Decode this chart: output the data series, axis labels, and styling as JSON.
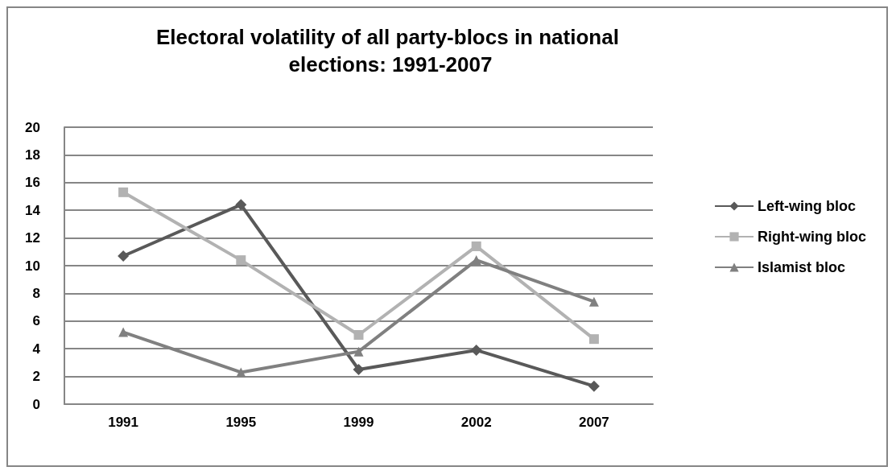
{
  "chart_data": {
    "type": "line",
    "title": "Electoral volatility of all party-blocs in national elections: 1991-2007",
    "categories": [
      "1991",
      "1995",
      "1999",
      "2002",
      "2007"
    ],
    "series": [
      {
        "name": "Left-wing bloc",
        "color": "#595959",
        "marker": "diamond",
        "values": [
          10.7,
          14.4,
          2.5,
          3.9,
          1.3
        ]
      },
      {
        "name": "Right-wing bloc",
        "color": "#b2b2b2",
        "marker": "square",
        "values": [
          15.3,
          10.4,
          5.0,
          11.4,
          4.7
        ]
      },
      {
        "name": "Islamist bloc",
        "color": "#808080",
        "marker": "triangle",
        "values": [
          5.2,
          2.3,
          3.8,
          10.4,
          7.4
        ]
      }
    ],
    "ylim": [
      0,
      20
    ],
    "yticks": [
      0,
      2,
      4,
      6,
      8,
      10,
      12,
      14,
      16,
      18,
      20
    ],
    "grid": "y",
    "legend": "right",
    "line_style": "solid"
  }
}
